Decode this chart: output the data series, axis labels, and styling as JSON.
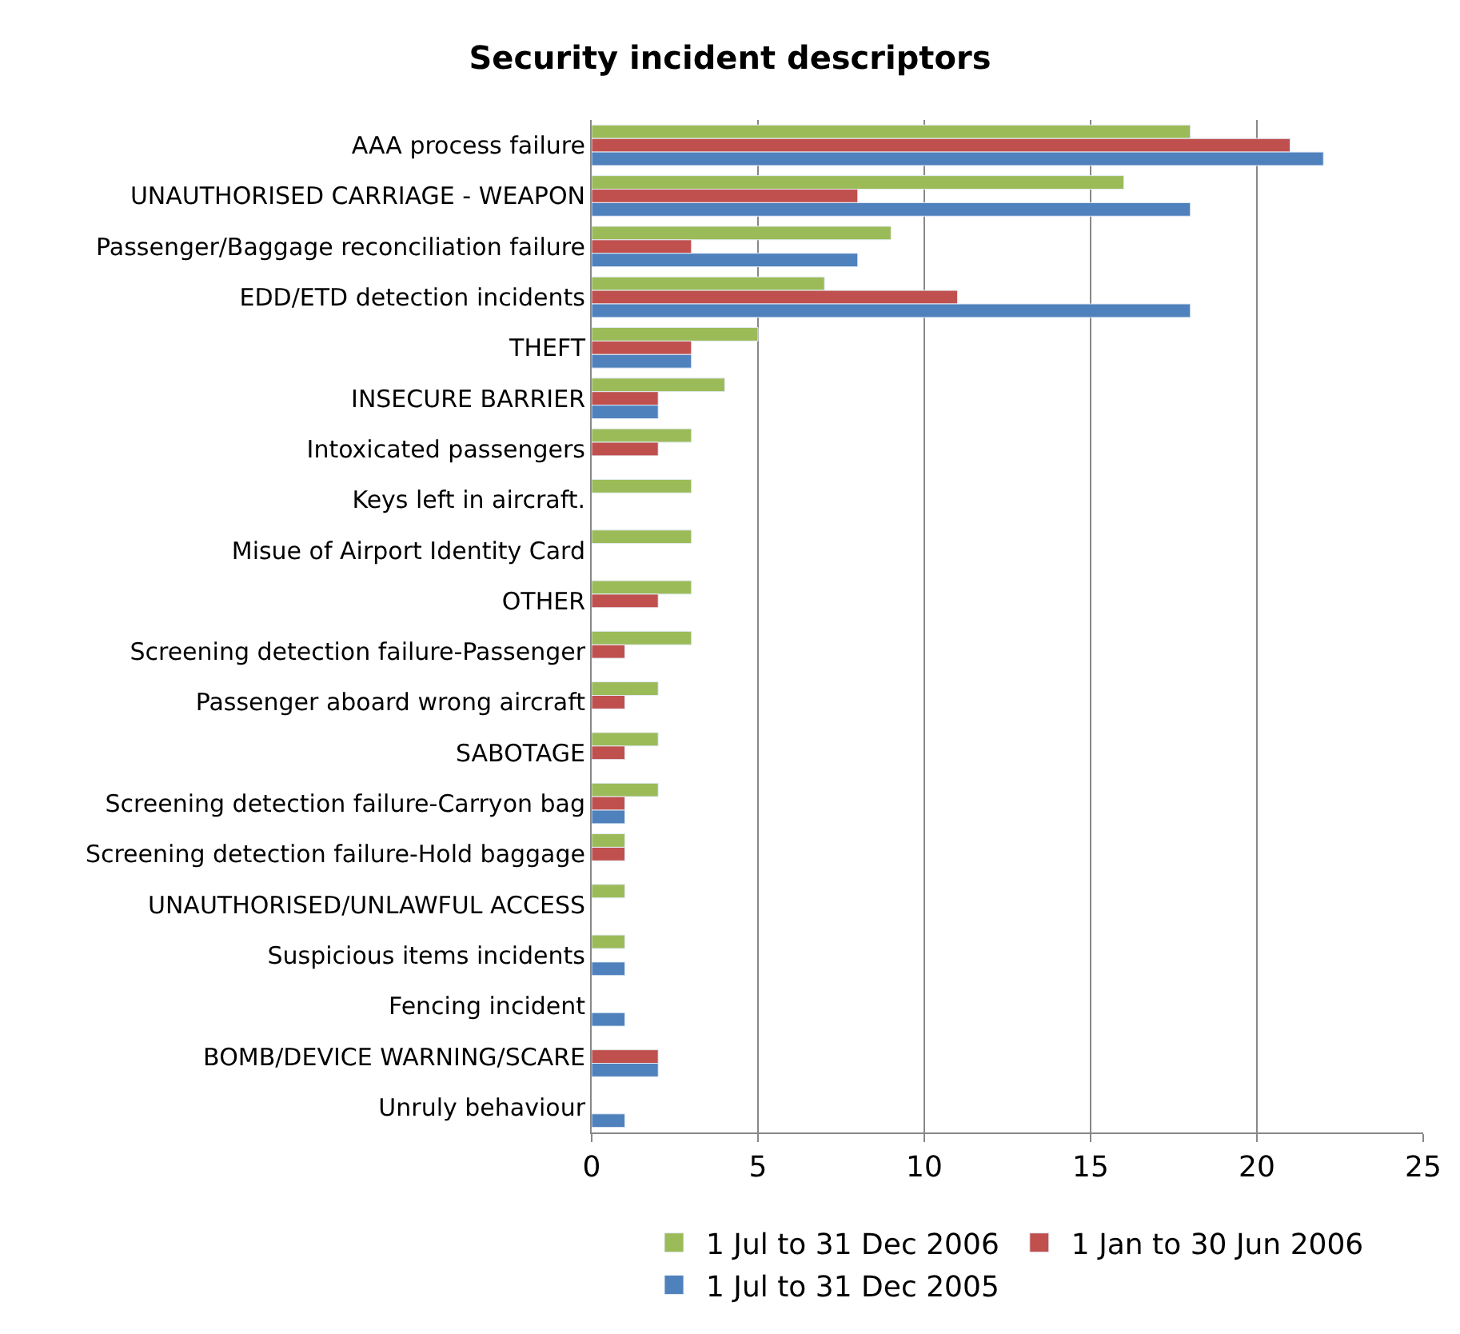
{
  "chart_data": {
    "type": "bar",
    "orientation": "horizontal",
    "title": "Security incident descriptors",
    "categories": [
      "AAA process failure",
      "UNAUTHORISED CARRIAGE - WEAPON",
      "Passenger/Baggage reconciliation failure",
      "EDD/ETD detection incidents",
      "THEFT",
      "INSECURE BARRIER",
      "Intoxicated passengers",
      "Keys left in aircraft.",
      "Misue of Airport Identity Card",
      "OTHER",
      "Screening detection failure-Passenger",
      "Passenger aboard wrong aircraft",
      "SABOTAGE",
      "Screening detection failure-Carryon bag",
      "Screening detection failure-Hold baggage",
      "UNAUTHORISED/UNLAWFUL ACCESS",
      "Suspicious items incidents",
      "Fencing incident",
      "BOMB/DEVICE WARNING/SCARE",
      "Unruly behaviour"
    ],
    "series": [
      {
        "name": "1 Jul to 31 Dec 2006",
        "color": "#9bbb59",
        "values": [
          18,
          16,
          9,
          7,
          5,
          4,
          3,
          3,
          3,
          3,
          3,
          2,
          2,
          2,
          1,
          1,
          1,
          null,
          null,
          null
        ]
      },
      {
        "name": "1 Jan to 30 Jun 2006",
        "color": "#c0504d",
        "values": [
          21,
          8,
          3,
          11,
          3,
          2,
          2,
          null,
          null,
          2,
          1,
          1,
          1,
          1,
          1,
          null,
          null,
          null,
          2,
          null
        ]
      },
      {
        "name": "1 Jul to 31 Dec 2005",
        "color": "#4f81bd",
        "values": [
          22,
          18,
          8,
          18,
          3,
          2,
          null,
          null,
          null,
          null,
          null,
          null,
          null,
          1,
          null,
          null,
          1,
          1,
          2,
          1
        ]
      }
    ],
    "xlim": [
      0,
      25
    ],
    "xticks": [
      0,
      5,
      10,
      15,
      20,
      25
    ],
    "grid": "x",
    "legend": "bottom"
  }
}
